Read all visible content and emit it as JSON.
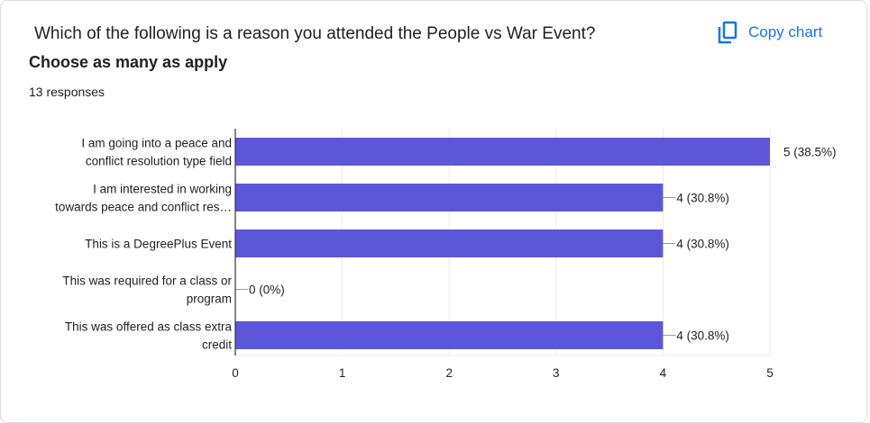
{
  "header": {
    "title": "Which of the following is a reason you attended the People vs War Event?",
    "subtitle": "Choose as many as apply",
    "responses": "13 responses",
    "copy_label": "Copy chart",
    "copy_icon": "copy-icon"
  },
  "colors": {
    "bar": "#5b57d8",
    "accent": "#1a73e8"
  },
  "chart_data": {
    "type": "bar",
    "orientation": "horizontal",
    "categories": [
      [
        "I am going into a peace and",
        "conflict resolution type field"
      ],
      [
        "I am interested in working",
        "towards peace and conflict res…"
      ],
      [
        "This is a DegreePlus Event"
      ],
      [
        "This was required for a class or",
        "program"
      ],
      [
        "This was offered as class extra",
        "credit"
      ]
    ],
    "values": [
      5,
      4,
      4,
      0,
      4
    ],
    "data_labels": [
      "5 (38.5%)",
      "4 (30.8%)",
      "4 (30.8%)",
      "0 (0%)",
      "4 (30.8%)"
    ],
    "xlim": [
      0,
      5
    ],
    "xticks": [
      "0",
      "1",
      "2",
      "3",
      "4",
      "5"
    ],
    "grid": true
  }
}
